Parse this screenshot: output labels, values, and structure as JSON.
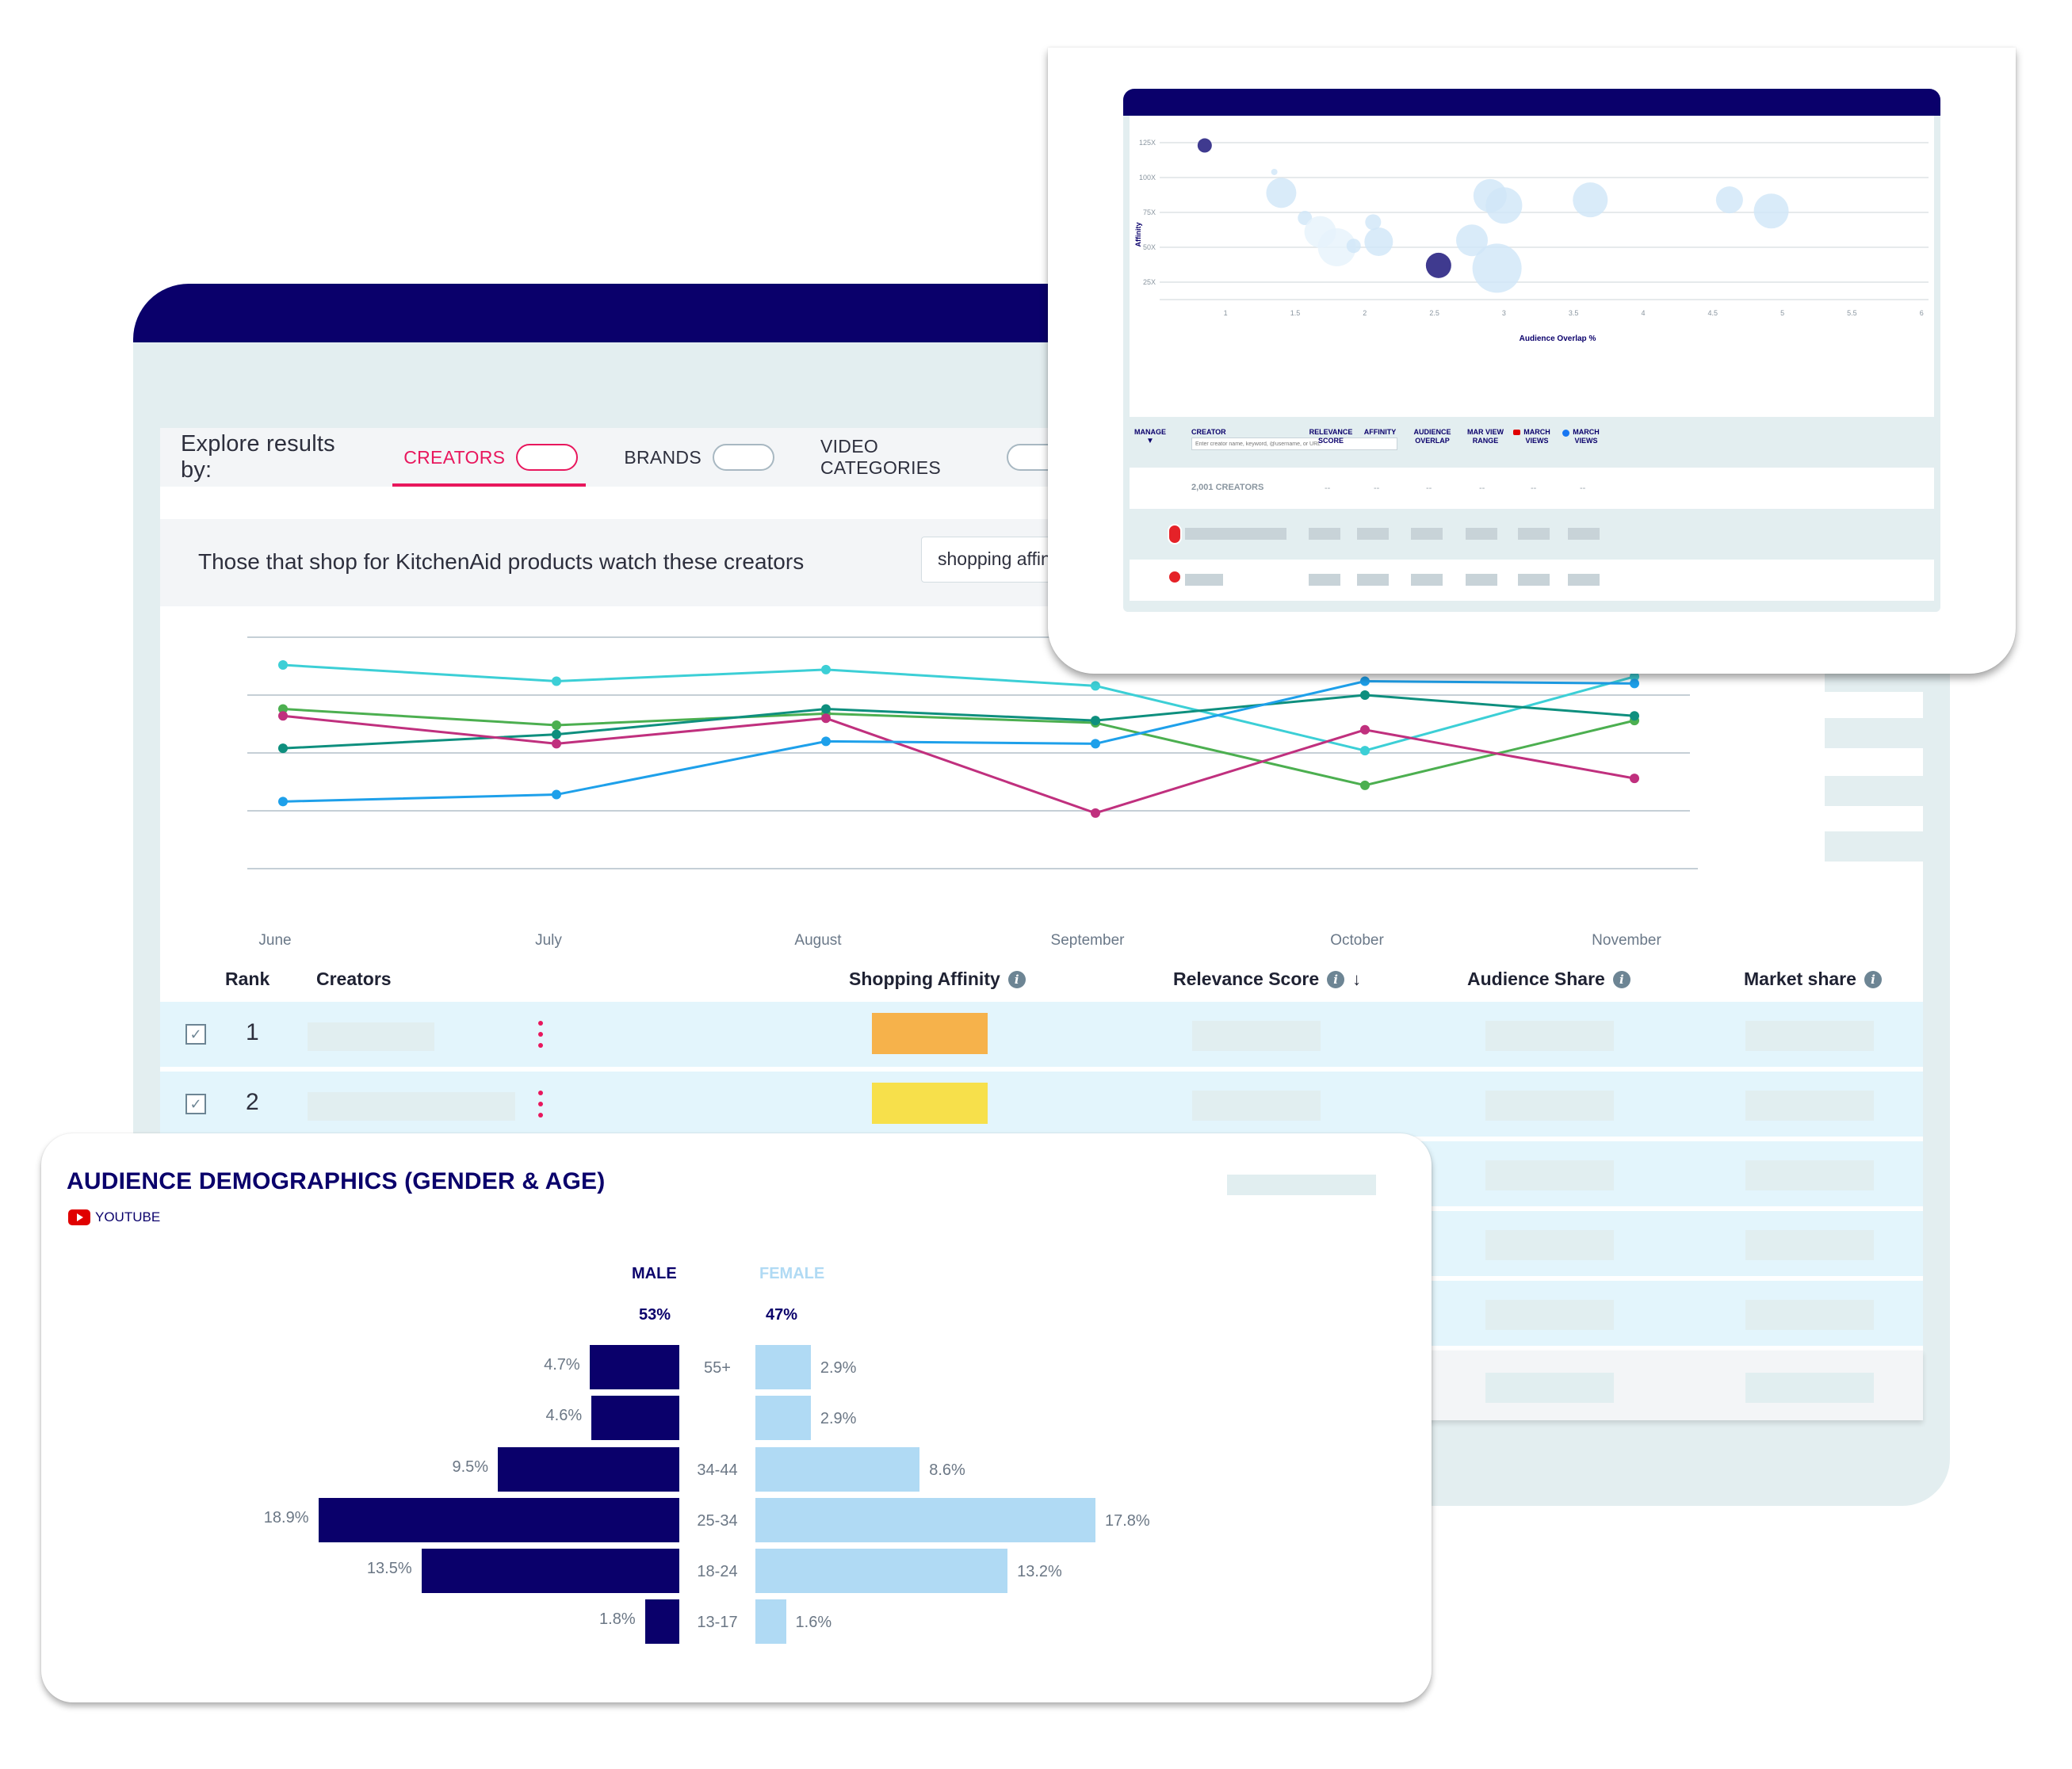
{
  "main": {
    "explore_label": "Explore results by:",
    "tabs": [
      {
        "label": "CREATORS",
        "active": true
      },
      {
        "label": "BRANDS",
        "active": false
      },
      {
        "label": "VIDEO CATEGORIES",
        "active": false
      }
    ],
    "subtitle": "Those that shop for KitchenAid products watch these creators",
    "sort_select": {
      "value": "shopping affinity"
    },
    "table": {
      "columns": [
        "Rank",
        "Creators",
        "Shopping Affinity",
        "Relevance Score",
        "Audience Share",
        "Market share"
      ],
      "sort_indicator": "↓",
      "rows": [
        {
          "rank": "1",
          "checked": true,
          "affinity_color": "#f6b24b"
        },
        {
          "rank": "2",
          "checked": true,
          "affinity_color": "#f7e04b"
        }
      ]
    }
  },
  "colors": {
    "navy": "#0a006b",
    "accent_pink": "#e8175d",
    "panel_bg": "#e3eef0",
    "row_bg": "#e3f5fc",
    "female_bar": "#b0daf4",
    "bubble_light": "#cfe6f7",
    "bubble_dark": "#3f3a8f"
  },
  "chart_data": [
    {
      "type": "line",
      "title": "",
      "xlabel": "",
      "ylabel": "",
      "categories": [
        "June",
        "July",
        "August",
        "September",
        "October",
        "November"
      ],
      "y_axis_labels_visible": false,
      "grid": true,
      "series": [
        {
          "name": "series-cyan",
          "color": "#3ccfd6",
          "values": [
            88,
            81,
            86,
            79,
            51,
            83
          ]
        },
        {
          "name": "series-green",
          "color": "#4caf50",
          "values": [
            69,
            62,
            67,
            63,
            36,
            64
          ]
        },
        {
          "name": "series-teal",
          "color": "#0e8f7e",
          "values": [
            52,
            58,
            69,
            64,
            75,
            66
          ]
        },
        {
          "name": "series-magenta",
          "color": "#c0307e",
          "values": [
            66,
            54,
            65,
            24,
            60,
            39
          ]
        },
        {
          "name": "series-blue",
          "color": "#1ea0ea",
          "values": [
            29,
            32,
            55,
            54,
            81,
            80
          ]
        }
      ]
    },
    {
      "type": "scatter",
      "subtype": "bubble",
      "title": "",
      "xlabel": "Audience Overlap %",
      "ylabel": "Affinity",
      "x_ticks": [
        "1",
        "1.5",
        "2",
        "2.5",
        "3",
        "3.5",
        "4",
        "4.5",
        "5",
        "5.5",
        "6"
      ],
      "y_ticks": [
        "25X",
        "50X",
        "75X",
        "100X",
        "125X"
      ],
      "xlim": [
        0.85,
        6.05
      ],
      "ylim": [
        18,
        130
      ],
      "grid": true,
      "points": [
        {
          "x": 0.85,
          "y": 123,
          "r": 9,
          "highlight": true
        },
        {
          "x": 1.35,
          "y": 104,
          "r": 4
        },
        {
          "x": 1.4,
          "y": 89,
          "r": 19
        },
        {
          "x": 1.57,
          "y": 71,
          "r": 9
        },
        {
          "x": 1.68,
          "y": 61,
          "r": 20,
          "faint": true
        },
        {
          "x": 1.8,
          "y": 50,
          "r": 24,
          "faint": true
        },
        {
          "x": 1.92,
          "y": 51,
          "r": 9
        },
        {
          "x": 2.06,
          "y": 68,
          "r": 10
        },
        {
          "x": 2.1,
          "y": 54,
          "r": 18
        },
        {
          "x": 2.53,
          "y": 37,
          "r": 16,
          "highlight": true
        },
        {
          "x": 2.77,
          "y": 55,
          "r": 20
        },
        {
          "x": 2.9,
          "y": 87,
          "r": 21
        },
        {
          "x": 3.0,
          "y": 80,
          "r": 23
        },
        {
          "x": 2.95,
          "y": 35,
          "r": 31
        },
        {
          "x": 3.62,
          "y": 84,
          "r": 22
        },
        {
          "x": 4.62,
          "y": 84,
          "r": 17
        },
        {
          "x": 4.92,
          "y": 76,
          "r": 22
        }
      ]
    },
    {
      "type": "bar",
      "subtype": "population-pyramid",
      "title": "AUDIENCE DEMOGRAPHICS (GENDER & AGE)",
      "categories": [
        "55+",
        "",
        "34-44",
        "25-34",
        "18-24",
        "13-17"
      ],
      "series": [
        {
          "name": "MALE",
          "total": "53%",
          "color": "#0a006b",
          "values": [
            4.7,
            4.6,
            9.5,
            18.9,
            13.5,
            1.8
          ]
        },
        {
          "name": "FEMALE",
          "total": "47%",
          "color": "#b0daf4",
          "values": [
            2.9,
            2.9,
            8.6,
            17.8,
            13.2,
            1.6
          ]
        }
      ]
    }
  ],
  "scatter_card": {
    "y_axis_label": "Affinity",
    "x_axis_label": "Audience Overlap %",
    "table": {
      "manage_label": "MANAGE",
      "creator_label": "CREATOR",
      "search_placeholder": "Enter creator name, keyword, @username, or URL",
      "columns": [
        {
          "label": "RELEVANCE\nSCORE"
        },
        {
          "label": "AFFINITY"
        },
        {
          "label": "AUDIENCE\nOVERLAP"
        },
        {
          "label": "MAR VIEW\nRANGE"
        },
        {
          "label": "MARCH\nVIEWS",
          "icon": "youtube-icon"
        },
        {
          "label": "MARCH\nVIEWS",
          "icon": "facebook-icon"
        }
      ],
      "summary_row": {
        "count_label": "2,001 CREATORS",
        "values": [
          "--",
          "--",
          "--",
          "--",
          "--",
          "--"
        ]
      }
    }
  },
  "demographics": {
    "title": "AUDIENCE DEMOGRAPHICS (GENDER & AGE)",
    "platform": "YOUTUBE",
    "male_label": "MALE",
    "female_label": "FEMALE",
    "male_pct": "53%",
    "female_pct": "47%",
    "rows": [
      {
        "age": "55+",
        "male": "4.7%",
        "female": "2.9%"
      },
      {
        "age": "",
        "male": "4.6%",
        "female": "2.9%"
      },
      {
        "age": "34-44",
        "male": "9.5%",
        "female": "8.6%"
      },
      {
        "age": "25-34",
        "male": "18.9%",
        "female": "17.8%"
      },
      {
        "age": "18-24",
        "male": "13.5%",
        "female": "13.2%"
      },
      {
        "age": "13-17",
        "male": "1.8%",
        "female": "1.6%"
      }
    ]
  }
}
